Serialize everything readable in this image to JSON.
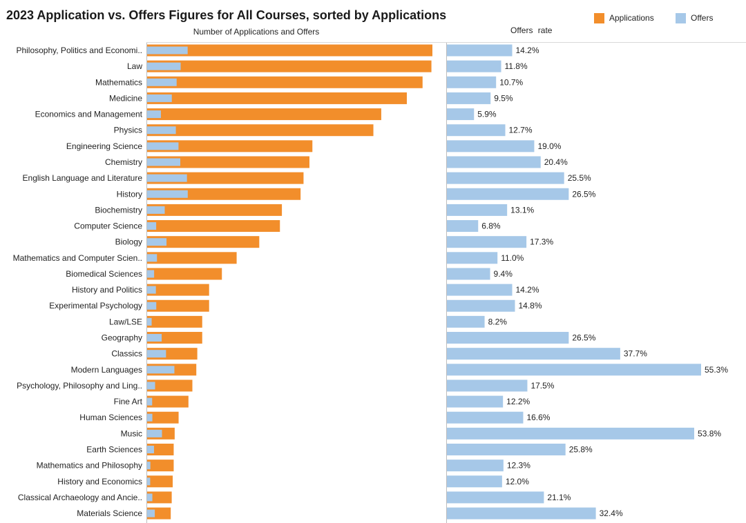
{
  "chart_data": [
    {
      "type": "bar",
      "orientation": "horizontal",
      "title": "2023 Application vs. Offers Figures for All Courses, sorted by Applications",
      "xlabel": "Number of Applications and Offers",
      "categories": [
        "Philosophy, Politics and Economi..",
        "Law",
        "Mathematics",
        "Medicine",
        "Economics and Management",
        "Physics",
        "Engineering Science",
        "Chemistry",
        "English Language and Literature",
        "History",
        "Biochemistry",
        "Computer Science",
        "Biology",
        "Mathematics and Computer Scien..",
        "Biomedical Sciences",
        "History and Politics",
        "Experimental Psychology",
        "Law/LSE",
        "Geography",
        "Classics",
        "Modern Languages",
        "Psychology, Philosophy and Ling..",
        "Fine Art",
        "Human Sciences",
        "Music",
        "Earth Sciences",
        "Mathematics and Philosophy",
        "History and Economics",
        "Classical Archaeology and Ancie..",
        "Materials Science"
      ],
      "series": [
        {
          "name": "Applications",
          "color": "#f28e2b",
          "values": [
            2900,
            2890,
            2800,
            2640,
            2380,
            2300,
            1680,
            1650,
            1590,
            1560,
            1370,
            1350,
            1140,
            910,
            760,
            630,
            630,
            560,
            560,
            510,
            500,
            460,
            420,
            320,
            280,
            270,
            270,
            260,
            250,
            240
          ]
        },
        {
          "name": "Offers",
          "color": "#a6c8e8",
          "values": [
            412,
            341,
            300,
            251,
            140,
            292,
            319,
            337,
            405,
            413,
            179,
            92,
            197,
            100,
            71,
            89,
            93,
            46,
            148,
            192,
            277,
            81,
            51,
            53,
            151,
            70,
            33,
            31,
            53,
            78
          ]
        }
      ]
    },
    {
      "type": "bar",
      "orientation": "horizontal",
      "xlabel": "Offers  rate",
      "series": [
        {
          "name": "Offers rate",
          "color": "#a6c8e8",
          "values": [
            14.2,
            11.8,
            10.7,
            9.5,
            5.9,
            12.7,
            19.0,
            20.4,
            25.5,
            26.5,
            13.1,
            6.8,
            17.3,
            11.0,
            9.4,
            14.2,
            14.8,
            8.2,
            26.5,
            37.7,
            55.3,
            17.5,
            12.2,
            16.6,
            53.8,
            25.8,
            12.3,
            12.0,
            21.1,
            32.4
          ]
        }
      ],
      "value_labels": [
        "14.2%",
        "11.8%",
        "10.7%",
        "9.5%",
        "5.9%",
        "12.7%",
        "19.0%",
        "20.4%",
        "25.5%",
        "26.5%",
        "13.1%",
        "6.8%",
        "17.3%",
        "11.0%",
        "9.4%",
        "14.2%",
        "14.8%",
        "8.2%",
        "26.5%",
        "37.7%",
        "55.3%",
        "17.5%",
        "12.2%",
        "16.6%",
        "53.8%",
        "25.8%",
        "12.3%",
        "12.0%",
        "21.1%",
        "32.4%"
      ]
    }
  ],
  "legend": {
    "applications_label": "Applications",
    "offers_label": "Offers"
  }
}
